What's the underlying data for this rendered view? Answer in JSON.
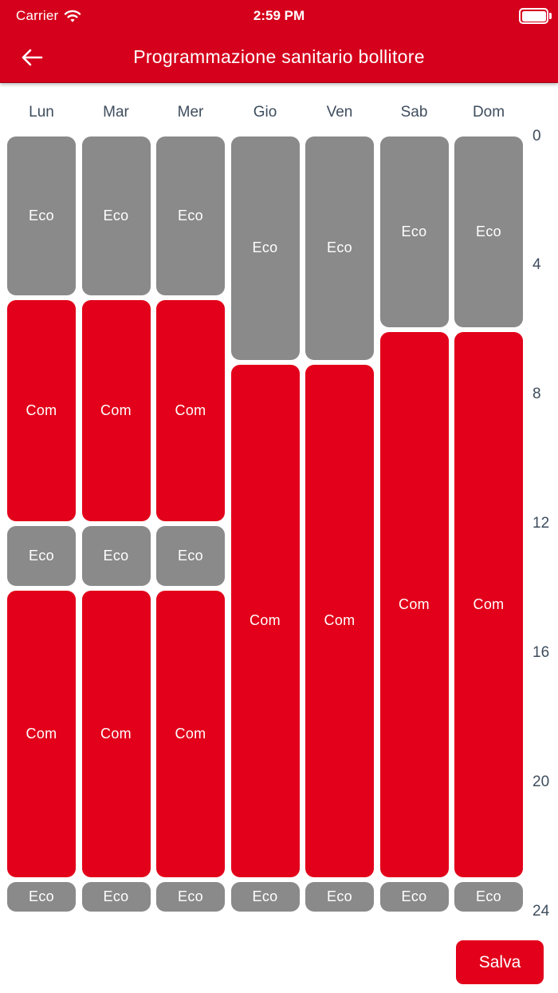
{
  "status_bar": {
    "carrier": "Carrier",
    "time": "2:59 PM",
    "wifi_icon": "wifi-icon",
    "battery_icon": "battery-full-icon"
  },
  "header": {
    "back_icon": "arrow-left-icon",
    "title": "Programmazione sanitario bollitore"
  },
  "colors": {
    "header_red": "#d5011c",
    "com_red": "#e2001a",
    "eco_gray": "#8a8a8a",
    "axis_label": "#3e4d5e",
    "block_text": "#ffffff"
  },
  "chart_data": {
    "type": "bar",
    "kind": "weekly-schedule-timeline",
    "title": "Programmazione sanitario bollitore",
    "hour_axis": {
      "min": 0,
      "max": 24,
      "ticks": [
        0,
        4,
        8,
        12,
        16,
        20,
        24
      ],
      "position": "right"
    },
    "legend": "none",
    "modes": [
      {
        "id": "Eco",
        "label": "Eco",
        "color": "#8a8a8a"
      },
      {
        "id": "Com",
        "label": "Com",
        "color": "#e2001a"
      }
    ],
    "days": [
      {
        "label": "Lun",
        "segments": [
          {
            "mode": "Eco",
            "start": 0,
            "end": 5
          },
          {
            "mode": "Com",
            "start": 5,
            "end": 12
          },
          {
            "mode": "Eco",
            "start": 12,
            "end": 14
          },
          {
            "mode": "Com",
            "start": 14,
            "end": 23
          },
          {
            "mode": "Eco",
            "start": 23,
            "end": 24
          }
        ]
      },
      {
        "label": "Mar",
        "segments": [
          {
            "mode": "Eco",
            "start": 0,
            "end": 5
          },
          {
            "mode": "Com",
            "start": 5,
            "end": 12
          },
          {
            "mode": "Eco",
            "start": 12,
            "end": 14
          },
          {
            "mode": "Com",
            "start": 14,
            "end": 23
          },
          {
            "mode": "Eco",
            "start": 23,
            "end": 24
          }
        ]
      },
      {
        "label": "Mer",
        "segments": [
          {
            "mode": "Eco",
            "start": 0,
            "end": 5
          },
          {
            "mode": "Com",
            "start": 5,
            "end": 12
          },
          {
            "mode": "Eco",
            "start": 12,
            "end": 14
          },
          {
            "mode": "Com",
            "start": 14,
            "end": 23
          },
          {
            "mode": "Eco",
            "start": 23,
            "end": 24
          }
        ]
      },
      {
        "label": "Gio",
        "segments": [
          {
            "mode": "Eco",
            "start": 0,
            "end": 7
          },
          {
            "mode": "Com",
            "start": 7,
            "end": 23
          },
          {
            "mode": "Eco",
            "start": 23,
            "end": 24
          }
        ]
      },
      {
        "label": "Ven",
        "segments": [
          {
            "mode": "Eco",
            "start": 0,
            "end": 7
          },
          {
            "mode": "Com",
            "start": 7,
            "end": 23
          },
          {
            "mode": "Eco",
            "start": 23,
            "end": 24
          }
        ]
      },
      {
        "label": "Sab",
        "segments": [
          {
            "mode": "Eco",
            "start": 0,
            "end": 6
          },
          {
            "mode": "Com",
            "start": 6,
            "end": 23
          },
          {
            "mode": "Eco",
            "start": 23,
            "end": 24
          }
        ]
      },
      {
        "label": "Dom",
        "segments": [
          {
            "mode": "Eco",
            "start": 0,
            "end": 6
          },
          {
            "mode": "Com",
            "start": 6,
            "end": 23
          },
          {
            "mode": "Eco",
            "start": 23,
            "end": 24
          }
        ]
      }
    ]
  },
  "footer": {
    "save_label": "Salva"
  }
}
